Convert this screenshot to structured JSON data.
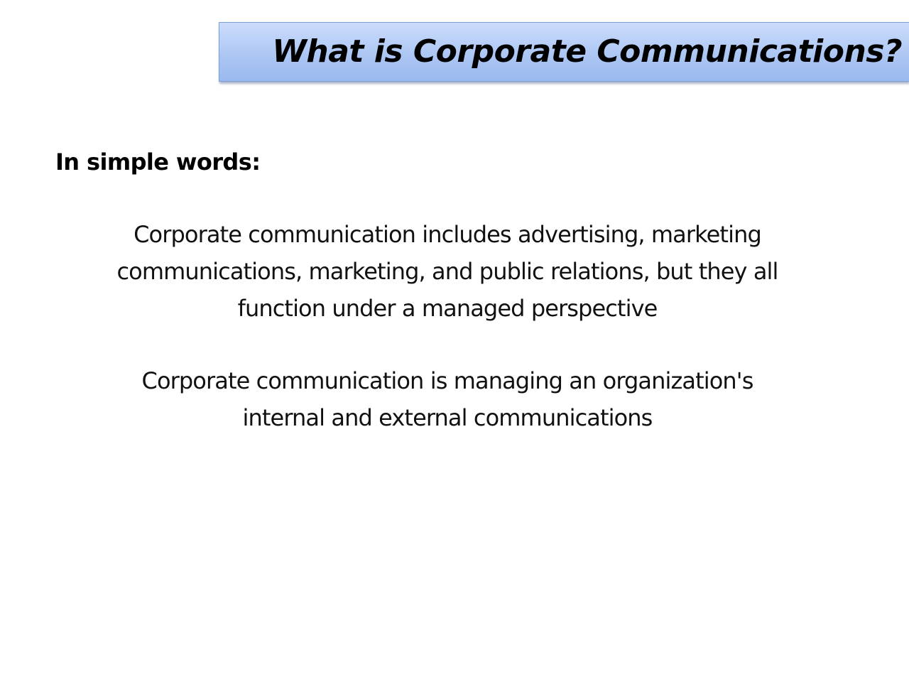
{
  "slide": {
    "title": "What is Corporate Communications?",
    "subheading": "In simple words:",
    "paragraphs": [
      {
        "lines": [
          "Corporate communication includes advertising, marketing",
          "communications, marketing, and public relations, but they all",
          "function under a managed perspective"
        ]
      },
      {
        "lines": [
          "Corporate communication is managing an organization's",
          "internal and external communications"
        ]
      }
    ]
  },
  "colors": {
    "title_gradient_top": "#ccdcfb",
    "title_gradient_bottom": "#9ab9ef",
    "title_border": "#7d9fd6",
    "text": "#111111",
    "background": "#ffffff"
  }
}
